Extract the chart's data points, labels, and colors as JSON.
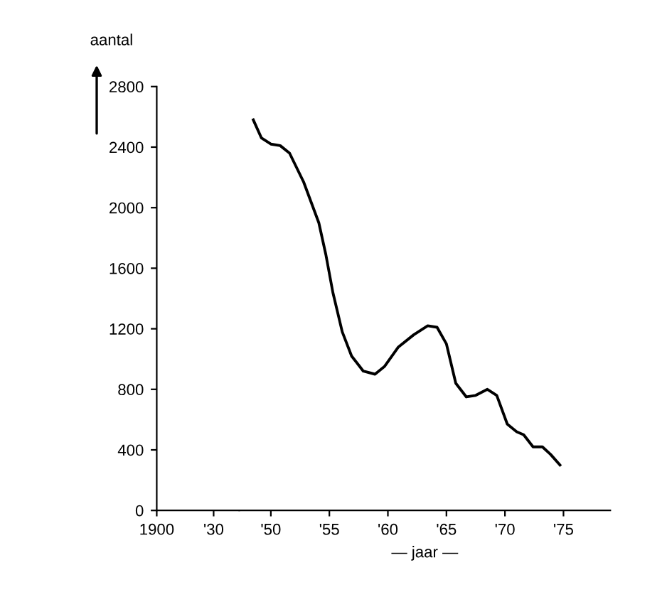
{
  "chart_data": [
    {
      "type": "line",
      "ylabel": "aantal",
      "xlim": [
        1900,
        1943.5
      ],
      "xticks": [
        {
          "value": 1900,
          "label": "1900"
        },
        {
          "value": 1930,
          "label": "'30"
        }
      ],
      "ylim": [
        0,
        2800
      ],
      "yticks": [
        0,
        400,
        800,
        1200,
        1600,
        2000,
        2400,
        2800
      ],
      "grid": false,
      "legend": false
    },
    {
      "type": "line",
      "xlabel": "— jaar —",
      "x": [
        1948.5,
        1949.2,
        1950.0,
        1950.8,
        1951.6,
        1952.8,
        1954.1,
        1954.7,
        1955.3,
        1956.1,
        1956.9,
        1957.9,
        1958.9,
        1959.7,
        1960.9,
        1962.2,
        1963.4,
        1964.2,
        1965.0,
        1965.8,
        1966.7,
        1967.5,
        1968.5,
        1969.3,
        1970.2,
        1971.0,
        1971.6,
        1972.4,
        1973.2,
        1973.9,
        1974.7
      ],
      "series": [
        {
          "color": "#000000",
          "values": [
            2580,
            2460,
            2420,
            2410,
            2360,
            2170,
            1900,
            1690,
            1440,
            1180,
            1020,
            920,
            900,
            950,
            1080,
            1160,
            1220,
            1210,
            1100,
            840,
            750,
            760,
            800,
            760,
            570,
            520,
            500,
            420,
            420,
            370,
            300
          ]
        }
      ],
      "xlim": [
        1947.3,
        1979
      ],
      "xticks": [
        {
          "value": 1950,
          "label": "'50"
        },
        {
          "value": 1955,
          "label": "'55"
        },
        {
          "value": 1960,
          "label": "'60"
        },
        {
          "value": 1965,
          "label": "'65"
        },
        {
          "value": 1970,
          "label": "'70"
        },
        {
          "value": 1975,
          "label": "'75"
        }
      ],
      "ylim": [
        0,
        2800
      ],
      "tick_labels": "x",
      "grid": false,
      "legend": false,
      "marker": "none",
      "line_style": "solid"
    }
  ]
}
